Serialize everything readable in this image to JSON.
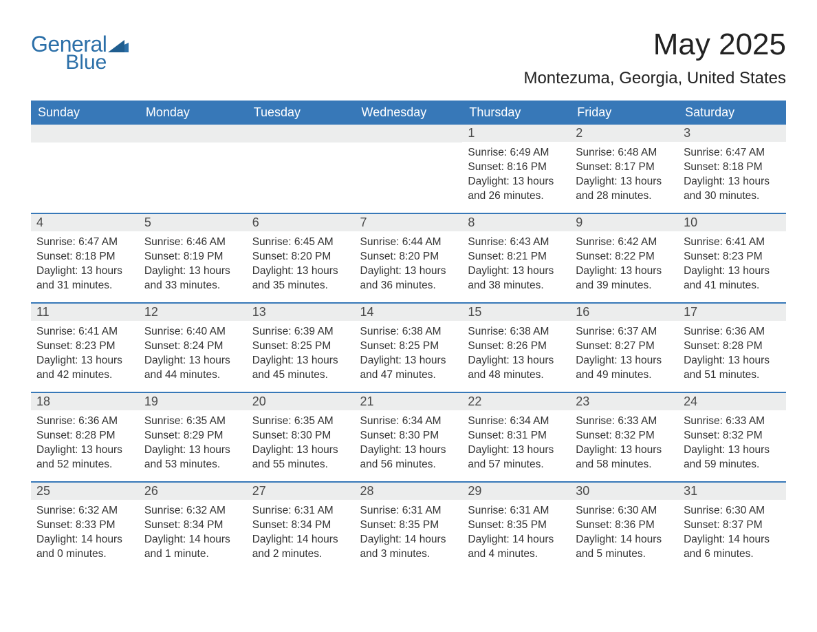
{
  "logo": {
    "word1": "General",
    "word2": "Blue"
  },
  "title": "May 2025",
  "location": "Montezuma, Georgia, United States",
  "colors": {
    "header_bg": "#3778b8",
    "header_fg": "#ffffff",
    "daynum_bg": "#eceded",
    "border": "#3778b8",
    "text": "#333333",
    "logo": "#2b6fa8"
  },
  "columns": [
    "Sunday",
    "Monday",
    "Tuesday",
    "Wednesday",
    "Thursday",
    "Friday",
    "Saturday"
  ],
  "weeks": [
    [
      {
        "day": "",
        "sunrise": "",
        "sunset": "",
        "daylight": ""
      },
      {
        "day": "",
        "sunrise": "",
        "sunset": "",
        "daylight": ""
      },
      {
        "day": "",
        "sunrise": "",
        "sunset": "",
        "daylight": ""
      },
      {
        "day": "",
        "sunrise": "",
        "sunset": "",
        "daylight": ""
      },
      {
        "day": "1",
        "sunrise": "Sunrise: 6:49 AM",
        "sunset": "Sunset: 8:16 PM",
        "daylight": "Daylight: 13 hours and 26 minutes."
      },
      {
        "day": "2",
        "sunrise": "Sunrise: 6:48 AM",
        "sunset": "Sunset: 8:17 PM",
        "daylight": "Daylight: 13 hours and 28 minutes."
      },
      {
        "day": "3",
        "sunrise": "Sunrise: 6:47 AM",
        "sunset": "Sunset: 8:18 PM",
        "daylight": "Daylight: 13 hours and 30 minutes."
      }
    ],
    [
      {
        "day": "4",
        "sunrise": "Sunrise: 6:47 AM",
        "sunset": "Sunset: 8:18 PM",
        "daylight": "Daylight: 13 hours and 31 minutes."
      },
      {
        "day": "5",
        "sunrise": "Sunrise: 6:46 AM",
        "sunset": "Sunset: 8:19 PM",
        "daylight": "Daylight: 13 hours and 33 minutes."
      },
      {
        "day": "6",
        "sunrise": "Sunrise: 6:45 AM",
        "sunset": "Sunset: 8:20 PM",
        "daylight": "Daylight: 13 hours and 35 minutes."
      },
      {
        "day": "7",
        "sunrise": "Sunrise: 6:44 AM",
        "sunset": "Sunset: 8:20 PM",
        "daylight": "Daylight: 13 hours and 36 minutes."
      },
      {
        "day": "8",
        "sunrise": "Sunrise: 6:43 AM",
        "sunset": "Sunset: 8:21 PM",
        "daylight": "Daylight: 13 hours and 38 minutes."
      },
      {
        "day": "9",
        "sunrise": "Sunrise: 6:42 AM",
        "sunset": "Sunset: 8:22 PM",
        "daylight": "Daylight: 13 hours and 39 minutes."
      },
      {
        "day": "10",
        "sunrise": "Sunrise: 6:41 AM",
        "sunset": "Sunset: 8:23 PM",
        "daylight": "Daylight: 13 hours and 41 minutes."
      }
    ],
    [
      {
        "day": "11",
        "sunrise": "Sunrise: 6:41 AM",
        "sunset": "Sunset: 8:23 PM",
        "daylight": "Daylight: 13 hours and 42 minutes."
      },
      {
        "day": "12",
        "sunrise": "Sunrise: 6:40 AM",
        "sunset": "Sunset: 8:24 PM",
        "daylight": "Daylight: 13 hours and 44 minutes."
      },
      {
        "day": "13",
        "sunrise": "Sunrise: 6:39 AM",
        "sunset": "Sunset: 8:25 PM",
        "daylight": "Daylight: 13 hours and 45 minutes."
      },
      {
        "day": "14",
        "sunrise": "Sunrise: 6:38 AM",
        "sunset": "Sunset: 8:25 PM",
        "daylight": "Daylight: 13 hours and 47 minutes."
      },
      {
        "day": "15",
        "sunrise": "Sunrise: 6:38 AM",
        "sunset": "Sunset: 8:26 PM",
        "daylight": "Daylight: 13 hours and 48 minutes."
      },
      {
        "day": "16",
        "sunrise": "Sunrise: 6:37 AM",
        "sunset": "Sunset: 8:27 PM",
        "daylight": "Daylight: 13 hours and 49 minutes."
      },
      {
        "day": "17",
        "sunrise": "Sunrise: 6:36 AM",
        "sunset": "Sunset: 8:28 PM",
        "daylight": "Daylight: 13 hours and 51 minutes."
      }
    ],
    [
      {
        "day": "18",
        "sunrise": "Sunrise: 6:36 AM",
        "sunset": "Sunset: 8:28 PM",
        "daylight": "Daylight: 13 hours and 52 minutes."
      },
      {
        "day": "19",
        "sunrise": "Sunrise: 6:35 AM",
        "sunset": "Sunset: 8:29 PM",
        "daylight": "Daylight: 13 hours and 53 minutes."
      },
      {
        "day": "20",
        "sunrise": "Sunrise: 6:35 AM",
        "sunset": "Sunset: 8:30 PM",
        "daylight": "Daylight: 13 hours and 55 minutes."
      },
      {
        "day": "21",
        "sunrise": "Sunrise: 6:34 AM",
        "sunset": "Sunset: 8:30 PM",
        "daylight": "Daylight: 13 hours and 56 minutes."
      },
      {
        "day": "22",
        "sunrise": "Sunrise: 6:34 AM",
        "sunset": "Sunset: 8:31 PM",
        "daylight": "Daylight: 13 hours and 57 minutes."
      },
      {
        "day": "23",
        "sunrise": "Sunrise: 6:33 AM",
        "sunset": "Sunset: 8:32 PM",
        "daylight": "Daylight: 13 hours and 58 minutes."
      },
      {
        "day": "24",
        "sunrise": "Sunrise: 6:33 AM",
        "sunset": "Sunset: 8:32 PM",
        "daylight": "Daylight: 13 hours and 59 minutes."
      }
    ],
    [
      {
        "day": "25",
        "sunrise": "Sunrise: 6:32 AM",
        "sunset": "Sunset: 8:33 PM",
        "daylight": "Daylight: 14 hours and 0 minutes."
      },
      {
        "day": "26",
        "sunrise": "Sunrise: 6:32 AM",
        "sunset": "Sunset: 8:34 PM",
        "daylight": "Daylight: 14 hours and 1 minute."
      },
      {
        "day": "27",
        "sunrise": "Sunrise: 6:31 AM",
        "sunset": "Sunset: 8:34 PM",
        "daylight": "Daylight: 14 hours and 2 minutes."
      },
      {
        "day": "28",
        "sunrise": "Sunrise: 6:31 AM",
        "sunset": "Sunset: 8:35 PM",
        "daylight": "Daylight: 14 hours and 3 minutes."
      },
      {
        "day": "29",
        "sunrise": "Sunrise: 6:31 AM",
        "sunset": "Sunset: 8:35 PM",
        "daylight": "Daylight: 14 hours and 4 minutes."
      },
      {
        "day": "30",
        "sunrise": "Sunrise: 6:30 AM",
        "sunset": "Sunset: 8:36 PM",
        "daylight": "Daylight: 14 hours and 5 minutes."
      },
      {
        "day": "31",
        "sunrise": "Sunrise: 6:30 AM",
        "sunset": "Sunset: 8:37 PM",
        "daylight": "Daylight: 14 hours and 6 minutes."
      }
    ]
  ]
}
